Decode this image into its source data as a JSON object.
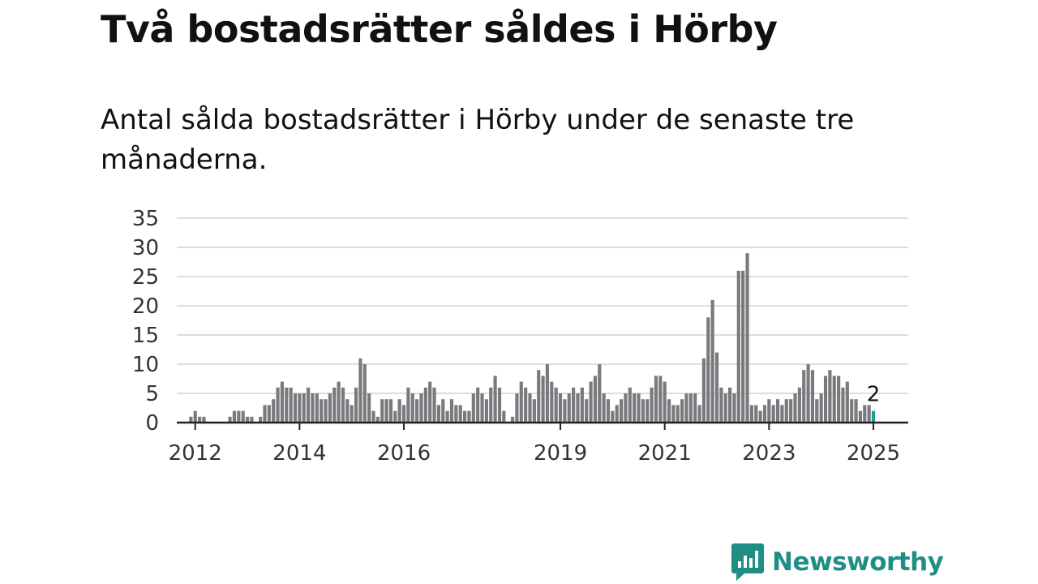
{
  "title": "Två bostadsrätter såldes i Hörby",
  "subtitle": "Antal sålda bostadsrätter i Hörby under de senaste tre månaderna.",
  "brand": {
    "name": "Newsworthy",
    "icon": "newsworthy-logo-icon",
    "color": "#1f8f86"
  },
  "chart_data": {
    "type": "bar",
    "x_start": "2011-11",
    "x_end": "2025-01",
    "values": [
      0,
      1,
      2,
      1,
      1,
      0,
      0,
      0,
      0,
      0,
      1,
      2,
      2,
      2,
      1,
      1,
      0,
      1,
      3,
      3,
      4,
      6,
      7,
      6,
      6,
      5,
      5,
      5,
      6,
      5,
      5,
      4,
      4,
      5,
      6,
      7,
      6,
      4,
      3,
      6,
      11,
      10,
      5,
      2,
      1,
      4,
      4,
      4,
      2,
      4,
      3,
      6,
      5,
      4,
      5,
      6,
      7,
      6,
      3,
      4,
      2,
      4,
      3,
      3,
      2,
      2,
      5,
      6,
      5,
      4,
      6,
      8,
      6,
      2,
      0,
      1,
      5,
      7,
      6,
      5,
      4,
      9,
      8,
      10,
      7,
      6,
      5,
      4,
      5,
      6,
      5,
      6,
      4,
      7,
      8,
      10,
      5,
      4,
      2,
      3,
      4,
      5,
      6,
      5,
      5,
      4,
      4,
      6,
      8,
      8,
      7,
      4,
      3,
      3,
      4,
      5,
      5,
      5,
      3,
      11,
      18,
      21,
      12,
      6,
      5,
      6,
      5,
      26,
      26,
      29,
      3,
      3,
      2,
      3,
      4,
      3,
      4,
      3,
      4,
      4,
      5,
      6,
      9,
      10,
      9,
      4,
      5,
      8,
      9,
      8,
      8,
      6,
      7,
      4,
      4,
      2,
      3,
      3,
      2
    ],
    "x_tick_labels": [
      "2012",
      "2014",
      "2016",
      "2019",
      "2021",
      "2023",
      "2025"
    ],
    "x_tick_dates": [
      "2012-01",
      "2014-01",
      "2016-01",
      "2019-01",
      "2021-01",
      "2023-01",
      "2025-01"
    ],
    "y_ticks": [
      0,
      5,
      10,
      15,
      20,
      25,
      30,
      35
    ],
    "ylim": [
      0,
      35
    ],
    "grid": true,
    "highlight_last": true,
    "last_value_label": "2",
    "colors": {
      "bar": "#7a7a7e",
      "highlight": "#1f9e96",
      "grid": "#dddddd",
      "axis": "#222222"
    }
  }
}
